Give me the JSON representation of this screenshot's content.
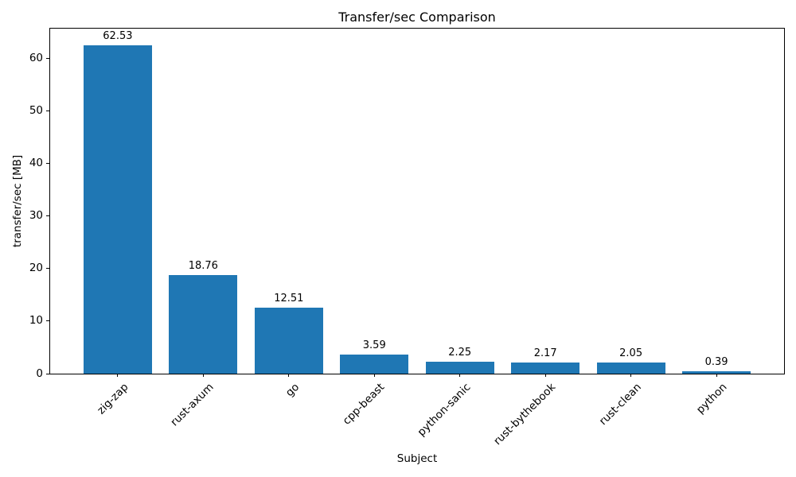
{
  "chart_data": {
    "type": "bar",
    "title": "Transfer/sec Comparison",
    "xlabel": "Subject",
    "ylabel": "transfer/sec [MB]",
    "categories": [
      "zig-zap",
      "rust-axum",
      "go",
      "cpp-beast",
      "python-sanic",
      "rust-bythebook",
      "rust-clean",
      "python"
    ],
    "values": [
      62.53,
      18.76,
      12.51,
      3.59,
      2.25,
      2.17,
      2.05,
      0.39
    ],
    "value_labels": [
      "62.53",
      "18.76",
      "12.51",
      "3.59",
      "2.25",
      "2.17",
      "2.05",
      "0.39"
    ],
    "yticks": [
      0,
      10,
      20,
      30,
      40,
      50,
      60
    ],
    "ylim": [
      0,
      65.66
    ],
    "xtick_rotation_deg": 45,
    "bar_color": "#1f77b4",
    "grid": false,
    "legend": "none"
  }
}
